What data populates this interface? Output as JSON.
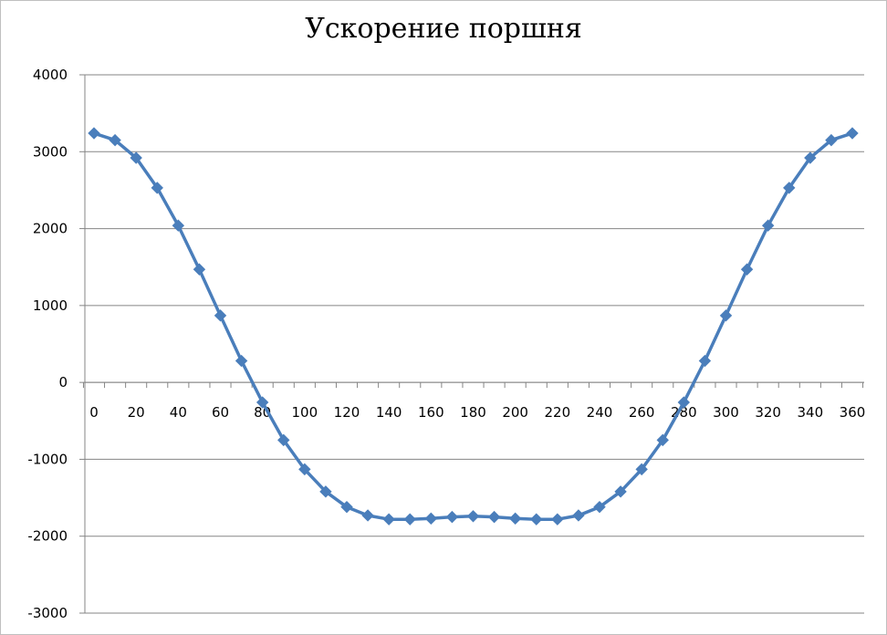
{
  "chart_data": {
    "type": "line",
    "title": "Ускорение поршня",
    "xlabel": "",
    "ylabel": "",
    "ylim": [
      -3000,
      4000
    ],
    "yticks": [
      4000,
      3000,
      2000,
      1000,
      0,
      -1000,
      -2000,
      -3000
    ],
    "xlim": [
      0,
      360
    ],
    "xticks": [
      0,
      20,
      40,
      60,
      80,
      100,
      120,
      140,
      160,
      180,
      200,
      220,
      240,
      260,
      280,
      300,
      320,
      340,
      360
    ],
    "grid": true,
    "legend": "none",
    "series": [
      {
        "color": "#4a7ebb",
        "marker": "diamond",
        "x": [
          0,
          10,
          20,
          30,
          40,
          50,
          60,
          70,
          80,
          90,
          100,
          110,
          120,
          130,
          140,
          150,
          160,
          170,
          180,
          190,
          200,
          210,
          220,
          230,
          240,
          250,
          260,
          270,
          280,
          290,
          300,
          310,
          320,
          330,
          340,
          350,
          360
        ],
        "values": [
          3240,
          3150,
          2920,
          2530,
          2040,
          1470,
          870,
          280,
          -260,
          -750,
          -1130,
          -1420,
          -1620,
          -1730,
          -1780,
          -1780,
          -1770,
          -1750,
          -1740,
          -1750,
          -1770,
          -1780,
          -1780,
          -1730,
          -1620,
          -1420,
          -1130,
          -750,
          -260,
          280,
          870,
          1470,
          2040,
          2530,
          2920,
          3150,
          3240
        ]
      }
    ]
  },
  "colors": {
    "series": "#4a7ebb",
    "grid": "#858585",
    "axis": "#858585",
    "frame": "#bfbfbf"
  }
}
